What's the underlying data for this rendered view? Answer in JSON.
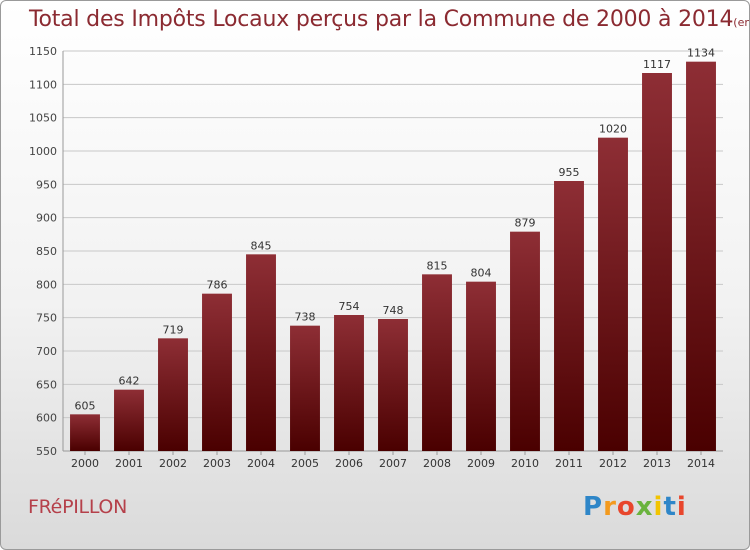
{
  "title": "Total des Impôts Locaux perçus par la Commune de 2000 à 2014",
  "unit_note": "(en milliers d'€)",
  "commune": "FRéPILLON",
  "logo": {
    "letters": [
      "P",
      "r",
      "o",
      "x",
      "i",
      "t",
      "i"
    ],
    "colors": [
      "#2e86c8",
      "#f39a1e",
      "#e8462c",
      "#6ab33e",
      "#f2c400",
      "#2e86c8",
      "#e8462c"
    ]
  },
  "colors": {
    "bar_top": "#8e2e35",
    "bar_bottom": "#4a0000",
    "title": "#8b2a31"
  },
  "chart_data": {
    "type": "bar",
    "title": "Total des Impôts Locaux perçus par la Commune de 2000 à 2014",
    "categories": [
      "2000",
      "2001",
      "2002",
      "2003",
      "2004",
      "2005",
      "2006",
      "2007",
      "2008",
      "2009",
      "2010",
      "2011",
      "2012",
      "2013",
      "2014"
    ],
    "values": [
      605,
      642,
      719,
      786,
      845,
      738,
      754,
      748,
      815,
      804,
      879,
      955,
      1020,
      1117,
      1134
    ],
    "ylim": [
      550,
      1150
    ],
    "yticks": [
      550,
      600,
      650,
      700,
      750,
      800,
      850,
      900,
      950,
      1000,
      1050,
      1100,
      1150
    ],
    "grid": true
  }
}
